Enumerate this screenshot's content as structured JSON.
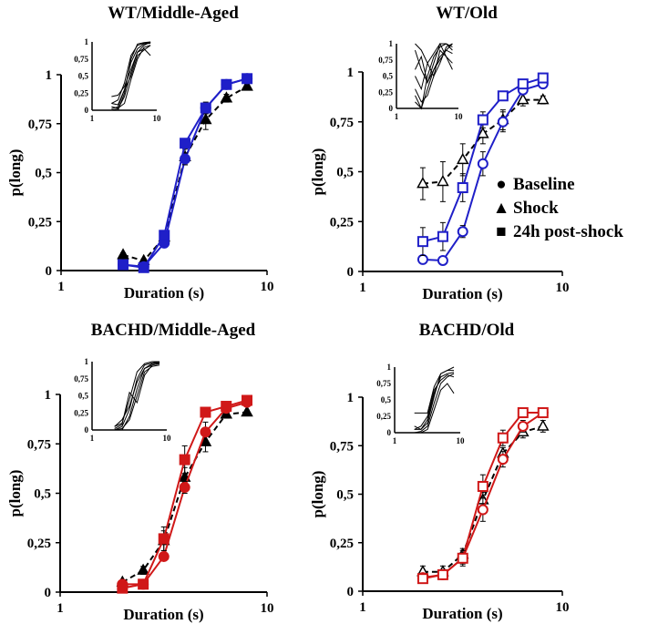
{
  "chart_data": {
    "type": "line",
    "x": [
      2,
      2.52,
      3.17,
      4,
      5.04,
      6.35,
      8
    ],
    "xscale": "log",
    "xlim": [
      1,
      10
    ],
    "ylim": [
      0,
      1
    ],
    "xticks": [
      "1",
      "10"
    ],
    "yticks": [
      "0",
      "0,25",
      "0,5",
      "0,75",
      "1"
    ],
    "xlabel": "Duration (s)",
    "ylabel": "p(long)",
    "legend": {
      "placement": "right of top-right panel",
      "entries": [
        {
          "marker": "●",
          "label": "Baseline"
        },
        {
          "marker": "▲",
          "label": "Shock"
        },
        {
          "marker": "■",
          "label": "24h post-shock"
        }
      ]
    },
    "panels": [
      {
        "title": "WT/Middle-Aged",
        "color": "#1f1fc8",
        "filled": true,
        "series": [
          {
            "name": "Baseline",
            "values": [
              0.03,
              0.02,
              0.14,
              0.57,
              0.83,
              0.95,
              0.98
            ],
            "err": [
              0.01,
              0.01,
              0.02,
              0.03,
              0.03,
              0.02,
              0.01
            ]
          },
          {
            "name": "Shock",
            "values": [
              0.08,
              0.05,
              0.17,
              0.58,
              0.77,
              0.88,
              0.94
            ],
            "err": [
              0.01,
              0.01,
              0.02,
              0.04,
              0.05,
              0.02,
              0.01
            ]
          },
          {
            "name": "24h post-shock",
            "values": [
              0.03,
              0.015,
              0.18,
              0.65,
              0.83,
              0.95,
              0.98
            ],
            "err": [
              0.01,
              0.01,
              0.02,
              0.02,
              0.02,
              0.01,
              0.01
            ]
          }
        ],
        "inset": [
          [
            0.02,
            0.05,
            0.3,
            0.7,
            0.9,
            0.97,
            0.98
          ],
          [
            0.1,
            0.15,
            0.4,
            0.8,
            0.95,
            0.98,
            0.99
          ],
          [
            0.0,
            0.02,
            0.2,
            0.55,
            0.85,
            0.9,
            0.8
          ],
          [
            0.2,
            0.22,
            0.35,
            0.6,
            0.85,
            0.95,
            1.0
          ],
          [
            0.05,
            0.03,
            0.1,
            0.45,
            0.75,
            0.92,
            0.95
          ],
          [
            0.0,
            0.0,
            0.25,
            0.75,
            0.97,
            0.99,
            1.0
          ],
          [
            0.1,
            0.08,
            0.3,
            0.5,
            0.8,
            0.88,
            0.95
          ]
        ]
      },
      {
        "title": "WT/Old",
        "color": "#1f1fc8",
        "filled": false,
        "series": [
          {
            "name": "Baseline",
            "values": [
              0.06,
              0.055,
              0.2,
              0.54,
              0.75,
              0.91,
              0.94
            ],
            "err": [
              0.01,
              0.01,
              0.03,
              0.06,
              0.05,
              0.02,
              0.01
            ]
          },
          {
            "name": "Shock",
            "values": [
              0.44,
              0.45,
              0.56,
              0.69,
              0.76,
              0.86,
              0.86
            ],
            "err": [
              0.08,
              0.1,
              0.08,
              0.05,
              0.05,
              0.03,
              0.02
            ]
          },
          {
            "name": "24h post-shock",
            "values": [
              0.15,
              0.175,
              0.42,
              0.76,
              0.88,
              0.94,
              0.97
            ],
            "err": [
              0.07,
              0.07,
              0.07,
              0.04,
              0.02,
              0.01,
              0.01
            ]
          }
        ],
        "inset": [
          [
            0.9,
            0.6,
            0.4,
            0.7,
            1.0,
            1.0,
            0.95
          ],
          [
            0.1,
            0.0,
            0.3,
            0.6,
            0.8,
            0.9,
            1.0
          ],
          [
            0.5,
            0.3,
            0.7,
            0.5,
            0.9,
            0.8,
            0.7
          ],
          [
            0.2,
            0.0,
            0.5,
            0.8,
            0.95,
            1.0,
            0.9
          ],
          [
            0.6,
            0.8,
            0.4,
            0.6,
            0.75,
            0.9,
            0.85
          ],
          [
            0.3,
            0.1,
            0.2,
            0.5,
            0.7,
            0.95,
            1.0
          ],
          [
            1.0,
            0.9,
            0.7,
            0.85,
            1.0,
            0.8,
            0.6
          ]
        ]
      },
      {
        "title": "BACHD/Middle-Aged",
        "color": "#d01818",
        "filled": true,
        "series": [
          {
            "name": "Baseline",
            "values": [
              0.04,
              0.04,
              0.18,
              0.53,
              0.81,
              0.93,
              0.96
            ],
            "err": [
              0.01,
              0.01,
              0.02,
              0.03,
              0.05,
              0.02,
              0.01
            ]
          },
          {
            "name": "Shock",
            "values": [
              0.05,
              0.11,
              0.26,
              0.58,
              0.76,
              0.9,
              0.91
            ],
            "err": [
              0.01,
              0.02,
              0.05,
              0.05,
              0.05,
              0.02,
              0.01
            ]
          },
          {
            "name": "24h post-shock",
            "values": [
              0.02,
              0.04,
              0.27,
              0.67,
              0.91,
              0.94,
              0.97
            ],
            "err": [
              0.01,
              0.01,
              0.06,
              0.07,
              0.02,
              0.01,
              0.01
            ]
          }
        ],
        "inset": [
          [
            0.0,
            0.05,
            0.3,
            0.75,
            0.95,
            0.98,
            1.0
          ],
          [
            0.05,
            0.1,
            0.45,
            0.85,
            0.97,
            1.0,
            1.0
          ],
          [
            0.0,
            0.0,
            0.2,
            0.6,
            0.9,
            0.95,
            0.97
          ],
          [
            0.02,
            0.08,
            0.55,
            0.4,
            0.8,
            0.95,
            0.98
          ],
          [
            0.0,
            0.02,
            0.15,
            0.5,
            0.85,
            0.93,
            0.95
          ],
          [
            0.05,
            0.15,
            0.35,
            0.7,
            0.9,
            0.97,
            0.99
          ]
        ]
      },
      {
        "title": "BACHD/Old",
        "color": "#d01818",
        "filled": false,
        "series": [
          {
            "name": "Baseline",
            "values": [
              0.07,
              0.085,
              0.17,
              0.42,
              0.68,
              0.85,
              0.92
            ],
            "err": [
              0.01,
              0.01,
              0.03,
              0.06,
              0.04,
              0.03,
              0.02
            ]
          },
          {
            "name": "Shock",
            "values": [
              0.1,
              0.1,
              0.19,
              0.47,
              0.71,
              0.82,
              0.85
            ],
            "err": [
              0.03,
              0.03,
              0.03,
              0.04,
              0.03,
              0.03,
              0.03
            ]
          },
          {
            "name": "24h post-shock",
            "values": [
              0.065,
              0.085,
              0.17,
              0.54,
              0.79,
              0.92,
              0.92
            ],
            "err": [
              0.01,
              0.01,
              0.04,
              0.06,
              0.04,
              0.02,
              0.01
            ]
          }
        ],
        "inset": [
          [
            0.3,
            0.3,
            0.3,
            0.7,
            0.9,
            0.95,
            1.0
          ],
          [
            0.05,
            0.05,
            0.2,
            0.6,
            0.85,
            0.9,
            0.92
          ],
          [
            0.0,
            0.02,
            0.1,
            0.45,
            0.75,
            0.85,
            0.9
          ],
          [
            0.1,
            0.05,
            0.15,
            0.55,
            0.9,
            0.95,
            0.95
          ],
          [
            0.0,
            0.0,
            0.05,
            0.35,
            0.65,
            0.75,
            0.6
          ],
          [
            0.05,
            0.1,
            0.25,
            0.65,
            0.8,
            0.88,
            0.85
          ]
        ]
      }
    ]
  }
}
